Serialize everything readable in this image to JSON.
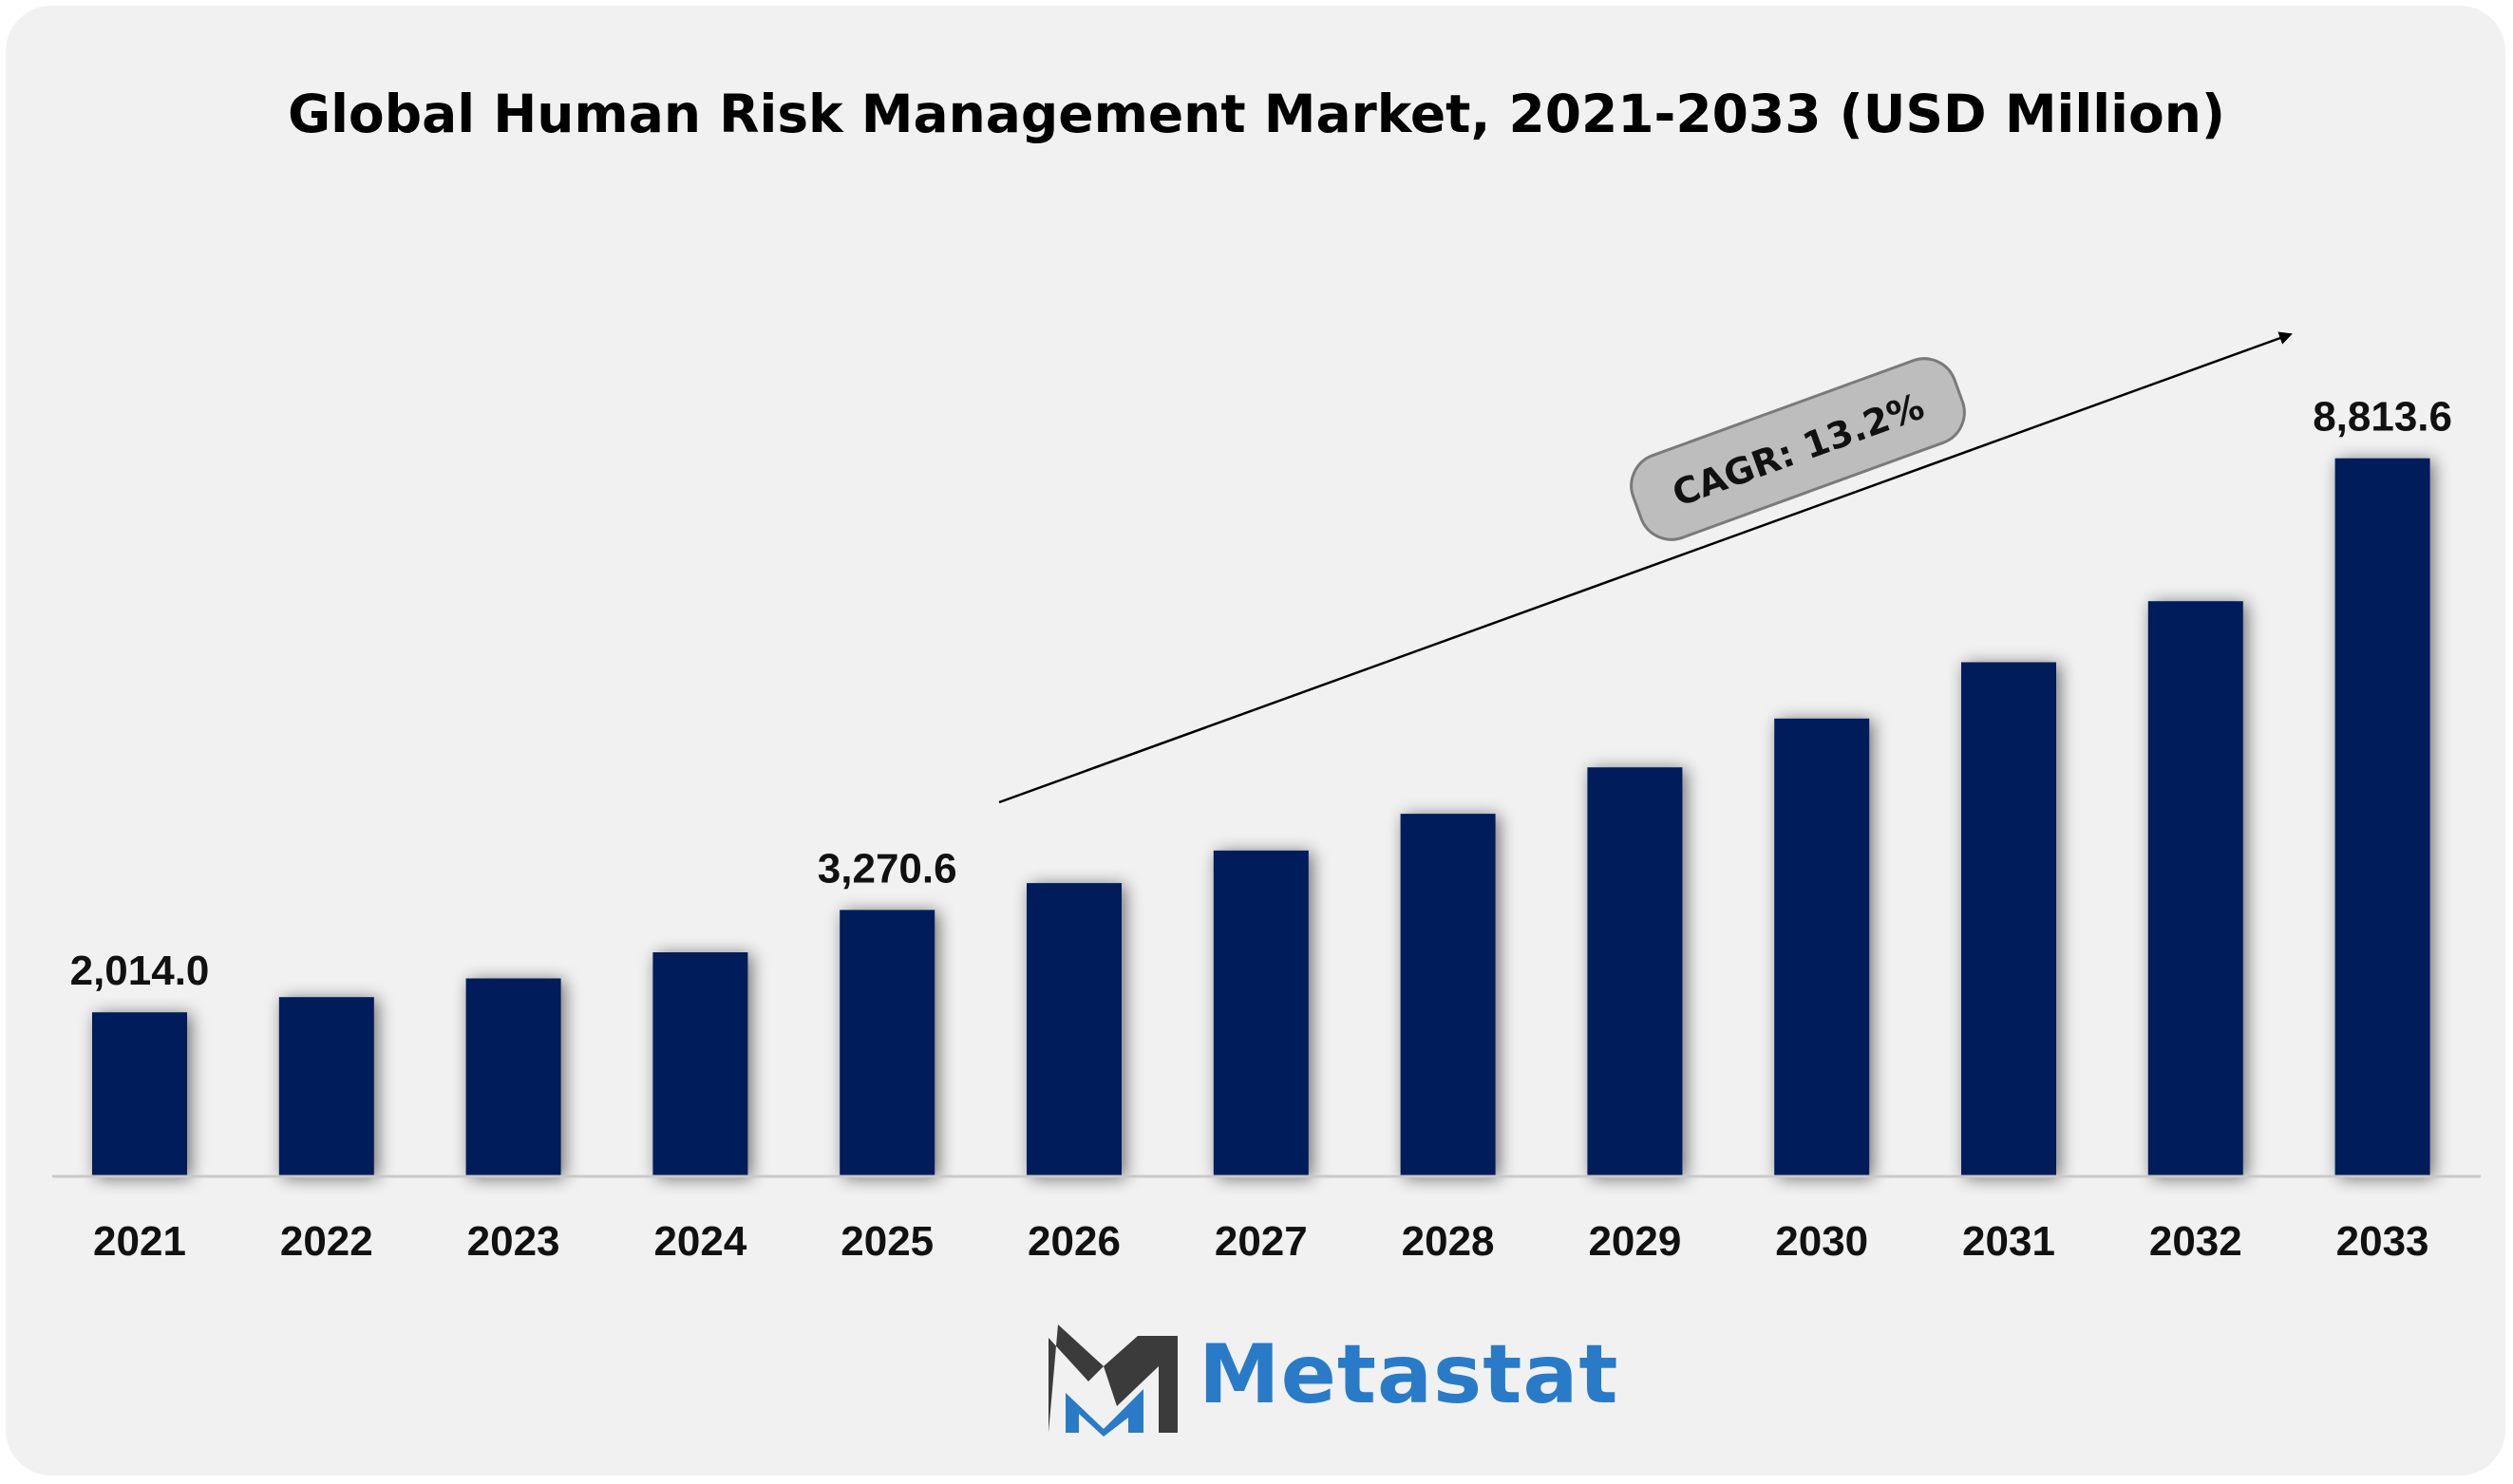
{
  "chart_data": {
    "type": "bar",
    "title": "Global Human Risk Management Market, 2021-2033 (USD Million)",
    "categories": [
      "2021",
      "2022",
      "2023",
      "2024",
      "2025",
      "2026",
      "2027",
      "2028",
      "2029",
      "2030",
      "2031",
      "2032",
      "2033"
    ],
    "values": [
      2014.0,
      2200,
      2430,
      2750,
      3270.6,
      3600,
      4000,
      4450,
      5020,
      5620,
      6310,
      7060,
      8813.6
    ],
    "data_labels": {
      "2021": "2,014.0",
      "2025": "3,270.6",
      "2033": "8,813.6"
    },
    "annotation": "CAGR: 13.2%",
    "ylim": [
      0,
      10500
    ],
    "xlabel": "",
    "ylabel": "",
    "grid": false,
    "bar_color": "#061e5a"
  },
  "logo": {
    "text": "Metastat",
    "text_color": "#2a7bc7"
  },
  "colors": {
    "background": "#f1f1f1",
    "bar": "#061e5a",
    "text": "#111111"
  }
}
